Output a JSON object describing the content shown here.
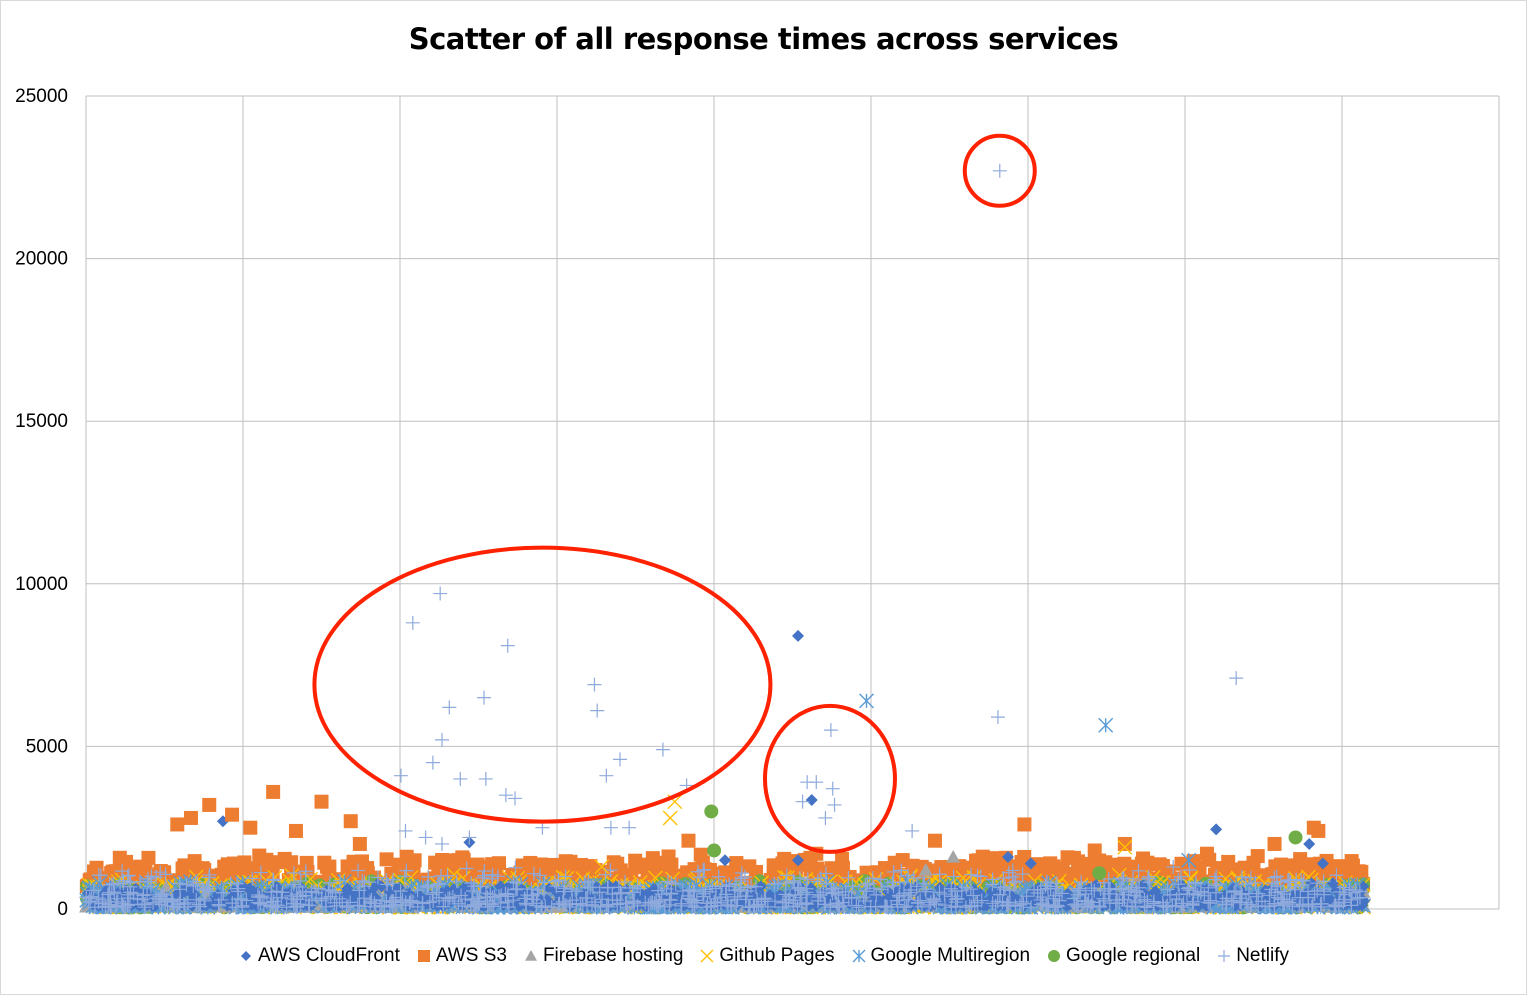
{
  "chart_data": {
    "type": "scatter",
    "title": "Scatter of all response times across services",
    "xlabel": "",
    "ylabel": "",
    "ylim": [
      0,
      25000
    ],
    "yticks": [
      "0",
      "5000",
      "10000",
      "15000",
      "20000",
      "25000"
    ],
    "x_count": 2000,
    "grid": true,
    "legend_position": "bottom",
    "series": [
      {
        "name": "AWS CloudFront",
        "color": "#4472c4",
        "marker": "diamond",
        "values": [
          [
            150,
            2700
          ],
          [
            420,
            2050
          ],
          [
            780,
            8400
          ],
          [
            795,
            3350
          ],
          [
            780,
            1500
          ],
          [
            1010,
            1600
          ],
          [
            1035,
            1400
          ],
          [
            1238,
            2450
          ],
          [
            1340,
            2000
          ],
          [
            1355,
            1400
          ],
          [
            700,
            1500
          ]
        ],
        "baseline": [
          100,
          800
        ]
      },
      {
        "name": "AWS S3",
        "color": "#ed7d31",
        "marker": "square",
        "values": [
          [
            100,
            2600
          ],
          [
            115,
            2800
          ],
          [
            135,
            3200
          ],
          [
            160,
            2900
          ],
          [
            180,
            2500
          ],
          [
            205,
            3600
          ],
          [
            230,
            2400
          ],
          [
            258,
            3300
          ],
          [
            290,
            2700
          ],
          [
            300,
            2000
          ],
          [
            660,
            2100
          ],
          [
            930,
            2100
          ],
          [
            1028,
            2600
          ],
          [
            1105,
            1800
          ],
          [
            1138,
            2000
          ],
          [
            1228,
            1700
          ],
          [
            1302,
            2000
          ],
          [
            1345,
            2500
          ],
          [
            1350,
            2400
          ],
          [
            800,
            1700
          ]
        ],
        "baseline": [
          700,
          1700
        ]
      },
      {
        "name": "Firebase hosting",
        "color": "#a5a5a5",
        "marker": "triangle",
        "values": [
          [
            950,
            1600
          ],
          [
            920,
            1200
          ]
        ],
        "baseline": [
          50,
          700
        ]
      },
      {
        "name": "Github Pages",
        "color": "#ffc000",
        "marker": "x",
        "values": [
          [
            645,
            3300
          ],
          [
            640,
            2800
          ],
          [
            1138,
            1900
          ],
          [
            565,
            1300
          ]
        ],
        "baseline": [
          50,
          1100
        ]
      },
      {
        "name": "Google Multiregion",
        "color": "#5b9bd5",
        "marker": "star",
        "values": [
          [
            855,
            6400
          ],
          [
            1117,
            5650
          ],
          [
            1208,
            1500
          ]
        ],
        "baseline": [
          50,
          900
        ]
      },
      {
        "name": "Google regional",
        "color": "#70ad47",
        "marker": "circle",
        "values": [
          [
            685,
            3000
          ],
          [
            688,
            1800
          ],
          [
            1325,
            2200
          ],
          [
            1110,
            1100
          ]
        ],
        "baseline": [
          50,
          900
        ]
      },
      {
        "name": "Netlify",
        "color": "#8faadc",
        "marker": "plus",
        "values": [
          [
            1001,
            22700
          ],
          [
            388,
            9700
          ],
          [
            358,
            8800
          ],
          [
            462,
            8100
          ],
          [
            557,
            6900
          ],
          [
            560,
            6100
          ],
          [
            398,
            6200
          ],
          [
            436,
            6500
          ],
          [
            999,
            5900
          ],
          [
            1260,
            7100
          ],
          [
            816,
            5500
          ],
          [
            632,
            4900
          ],
          [
            585,
            4600
          ],
          [
            570,
            4100
          ],
          [
            390,
            5200
          ],
          [
            345,
            4100
          ],
          [
            410,
            4000
          ],
          [
            438,
            4000
          ],
          [
            380,
            4500
          ],
          [
            460,
            3500
          ],
          [
            470,
            3400
          ],
          [
            658,
            3800
          ],
          [
            790,
            3900
          ],
          [
            800,
            3900
          ],
          [
            818,
            3700
          ],
          [
            820,
            3200
          ],
          [
            785,
            3300
          ],
          [
            810,
            2800
          ],
          [
            500,
            2500
          ],
          [
            575,
            2500
          ],
          [
            595,
            2500
          ],
          [
            905,
            2400
          ],
          [
            350,
            2400
          ],
          [
            372,
            2200
          ],
          [
            390,
            2000
          ],
          [
            420,
            2200
          ]
        ],
        "baseline": [
          50,
          1300
        ]
      }
    ],
    "annotations": [
      {
        "shape": "ellipse",
        "color": "#ff2200",
        "label": ""
      },
      {
        "shape": "ellipse",
        "color": "#ff2200",
        "label": ""
      },
      {
        "shape": "ellipse",
        "color": "#ff2200",
        "label": ""
      }
    ]
  }
}
